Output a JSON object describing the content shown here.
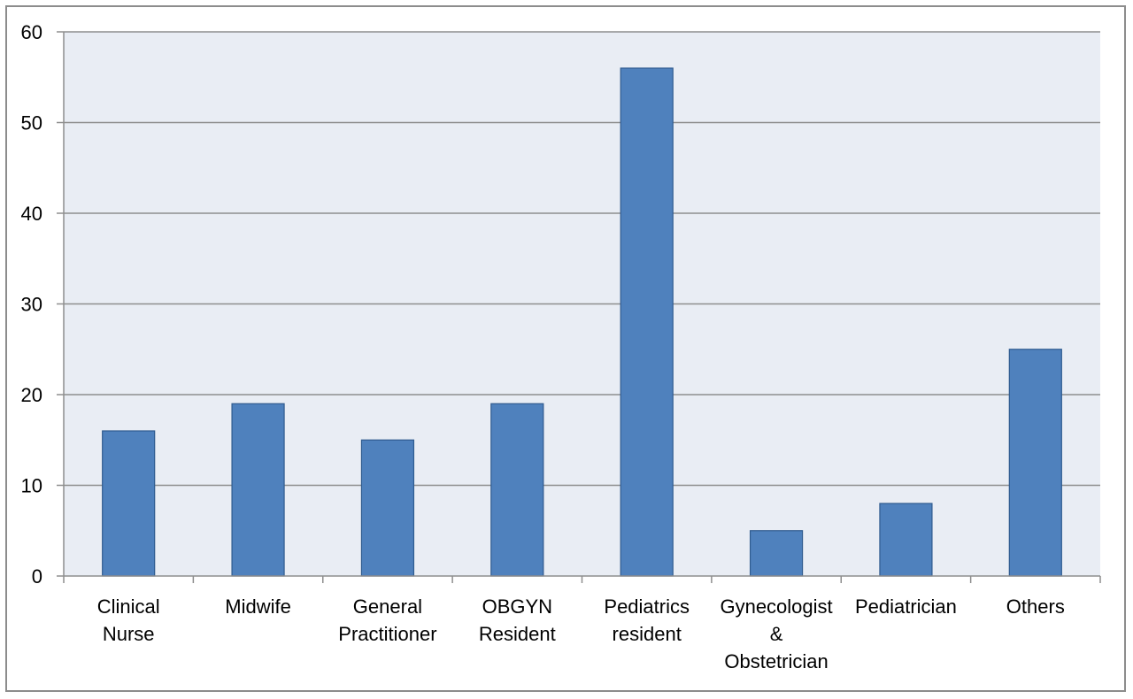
{
  "chart_data": {
    "type": "bar",
    "title": "",
    "xlabel": "",
    "ylabel": "",
    "categories": [
      [
        "Clinical",
        "Nurse"
      ],
      [
        "Midwife"
      ],
      [
        "General",
        "Practitioner"
      ],
      [
        "OBGYN",
        "Resident"
      ],
      [
        "Pediatrics",
        "resident"
      ],
      [
        "Gynecologist",
        "&",
        "Obstetrician"
      ],
      [
        "Pediatrician"
      ],
      [
        "Others"
      ]
    ],
    "values": [
      16,
      19,
      15,
      19,
      56,
      5,
      8,
      25
    ],
    "ylim": [
      0,
      60
    ],
    "yticks": [
      "0",
      "10",
      "20",
      "30",
      "40",
      "50",
      "60"
    ],
    "grid": true,
    "legend": "none",
    "colors": {
      "bar_fill": "#4f81bd",
      "bar_stroke": "#2f5b8f",
      "plot_background": "#e9edf4",
      "gridline": "#8e8e8e",
      "axis": "#8e8e8e"
    }
  }
}
